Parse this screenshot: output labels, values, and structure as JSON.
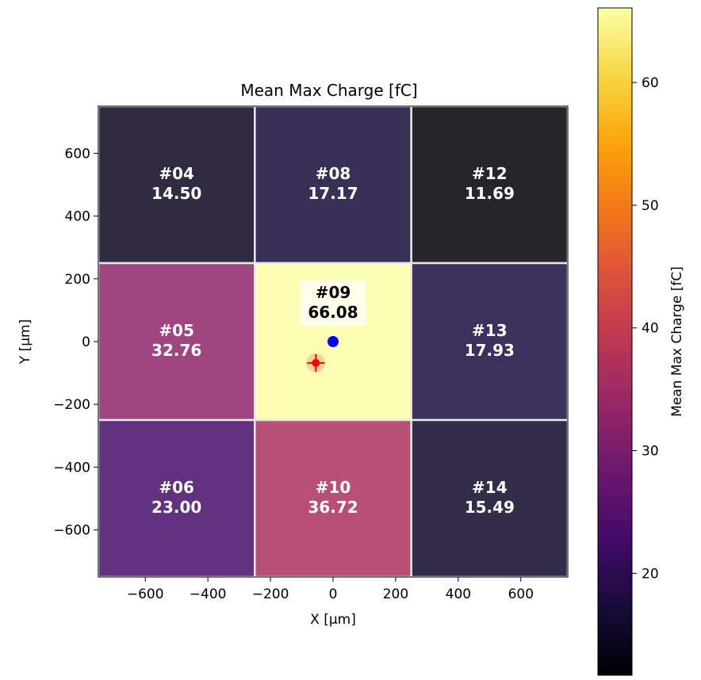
{
  "chart_data": {
    "type": "heatmap",
    "title": "Mean Max Charge [fC]",
    "xlabel": "X [µm]",
    "ylabel": "Y [µm]",
    "xlim": [
      -750,
      750
    ],
    "ylim": [
      -750,
      750
    ],
    "x_ticks": [
      -600,
      -400,
      -200,
      0,
      200,
      400,
      600
    ],
    "y_ticks": [
      -600,
      -400,
      -200,
      0,
      200,
      400,
      600
    ],
    "tick_format": "minus-sign",
    "grid": false,
    "pads": [
      {
        "id": "#04",
        "x": -500,
        "y": 500,
        "value": 14.5,
        "label_value": "14.50"
      },
      {
        "id": "#08",
        "x": 0,
        "y": 500,
        "value": 17.17,
        "label_value": "17.17"
      },
      {
        "id": "#12",
        "x": 500,
        "y": 500,
        "value": 11.69,
        "label_value": "11.69"
      },
      {
        "id": "#05",
        "x": -500,
        "y": 0,
        "value": 32.76,
        "label_value": "32.76"
      },
      {
        "id": "#09",
        "x": 0,
        "y": 0,
        "value": 66.08,
        "label_value": "66.08",
        "highlight": true
      },
      {
        "id": "#13",
        "x": 500,
        "y": 0,
        "value": 17.93,
        "label_value": "17.93"
      },
      {
        "id": "#06",
        "x": -500,
        "y": -500,
        "value": 23.0,
        "label_value": "23.00"
      },
      {
        "id": "#10",
        "x": 0,
        "y": -500,
        "value": 36.72,
        "label_value": "36.72"
      },
      {
        "id": "#14",
        "x": 500,
        "y": -500,
        "value": 15.49,
        "label_value": "15.49"
      }
    ],
    "pad_size": 500,
    "markers": [
      {
        "type": "blue-dot",
        "x": 0,
        "y": 0,
        "color": "#0000ff"
      },
      {
        "type": "red-cross",
        "x": -55,
        "y": -68,
        "color": "#ff0000",
        "halo_color": "#f6c89a"
      }
    ],
    "colorbar": {
      "label": "Mean Max Charge [fC]",
      "colormap": "inferno",
      "range": [
        11.69,
        66.08
      ],
      "ticks": [
        20,
        30,
        40,
        50,
        60
      ]
    }
  },
  "colors": {
    "pad_text": "#ffffff",
    "highlight_text": "#000000",
    "highlight_box": "#fffff0",
    "pad_border": "#e8e8e8"
  }
}
